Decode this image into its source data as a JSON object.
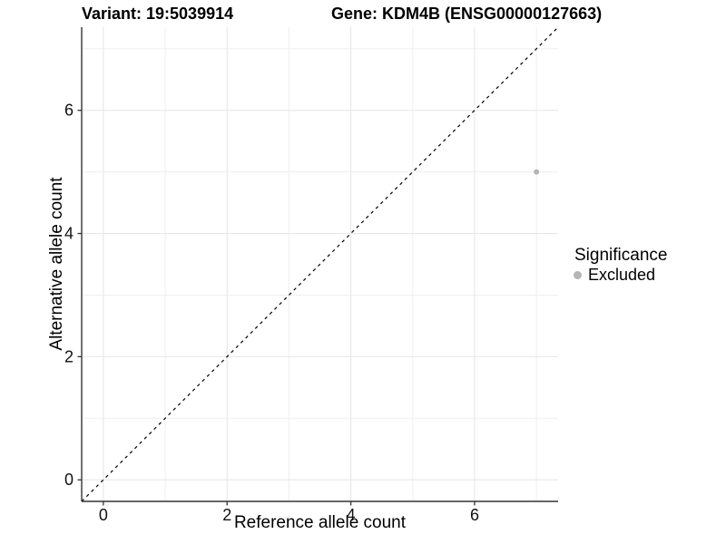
{
  "chart_data": {
    "type": "scatter",
    "title_left": "Variant: 19:5039914",
    "title_right": "Gene: KDM4B (ENSG00000127663)",
    "xlabel": "Reference allele count",
    "ylabel": "Alternative allele count",
    "xlim": [
      -0.35,
      7.35
    ],
    "ylim": [
      -0.35,
      7.35
    ],
    "xticks": [
      0,
      2,
      4,
      6
    ],
    "yticks": [
      0,
      2,
      4,
      6
    ],
    "x_minor": [
      1,
      3,
      5,
      7
    ],
    "y_minor": [
      1,
      3,
      5,
      7
    ],
    "grid": true,
    "legend_position": "right",
    "series": [
      {
        "name": "Excluded",
        "color": "#b5b5b5",
        "points": [
          {
            "x": 7,
            "y": 5
          }
        ]
      }
    ],
    "reference_line": {
      "style": "dashed",
      "color": "#000000",
      "from": [
        -0.35,
        -0.35
      ],
      "to": [
        7.35,
        7.35
      ]
    },
    "legend": {
      "title": "Significance",
      "entries": [
        {
          "label": "Excluded",
          "color": "#b5b5b5"
        }
      ]
    }
  },
  "colors": {
    "background": "#ffffff",
    "grid_major": "#e7e7e7",
    "grid_minor": "#efefef",
    "axis_line": "#333333",
    "tick_mark": "#333333",
    "tick_label": "#111111",
    "point": "#b5b5b5"
  }
}
